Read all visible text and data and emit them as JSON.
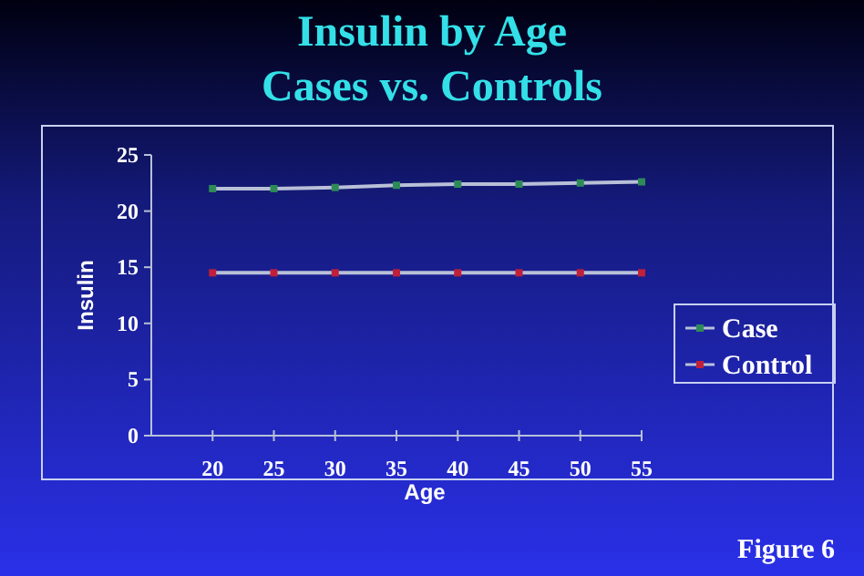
{
  "chart_data": {
    "type": "line",
    "title": "Insulin by Age",
    "subtitle": "Cases vs. Controls",
    "xlabel": "Age",
    "ylabel": "Insulin",
    "x": [
      20,
      25,
      30,
      35,
      40,
      45,
      50,
      55
    ],
    "series": [
      {
        "name": "Case",
        "color": "#2e8b57",
        "values": [
          22.0,
          22.0,
          22.1,
          22.3,
          22.4,
          22.4,
          22.5,
          22.6
        ]
      },
      {
        "name": "Control",
        "color": "#c0203a",
        "values": [
          14.5,
          14.5,
          14.5,
          14.5,
          14.5,
          14.5,
          14.5,
          14.5
        ]
      }
    ],
    "xlim": [
      15,
      55
    ],
    "xticks": [
      20,
      25,
      30,
      35,
      40,
      45,
      50,
      55
    ],
    "ylim": [
      0,
      25
    ],
    "yticks": [
      0,
      5,
      10,
      15,
      20,
      25
    ],
    "grid": false,
    "legend": "right",
    "marker": "square",
    "annotations": [
      "Figure 6"
    ]
  }
}
